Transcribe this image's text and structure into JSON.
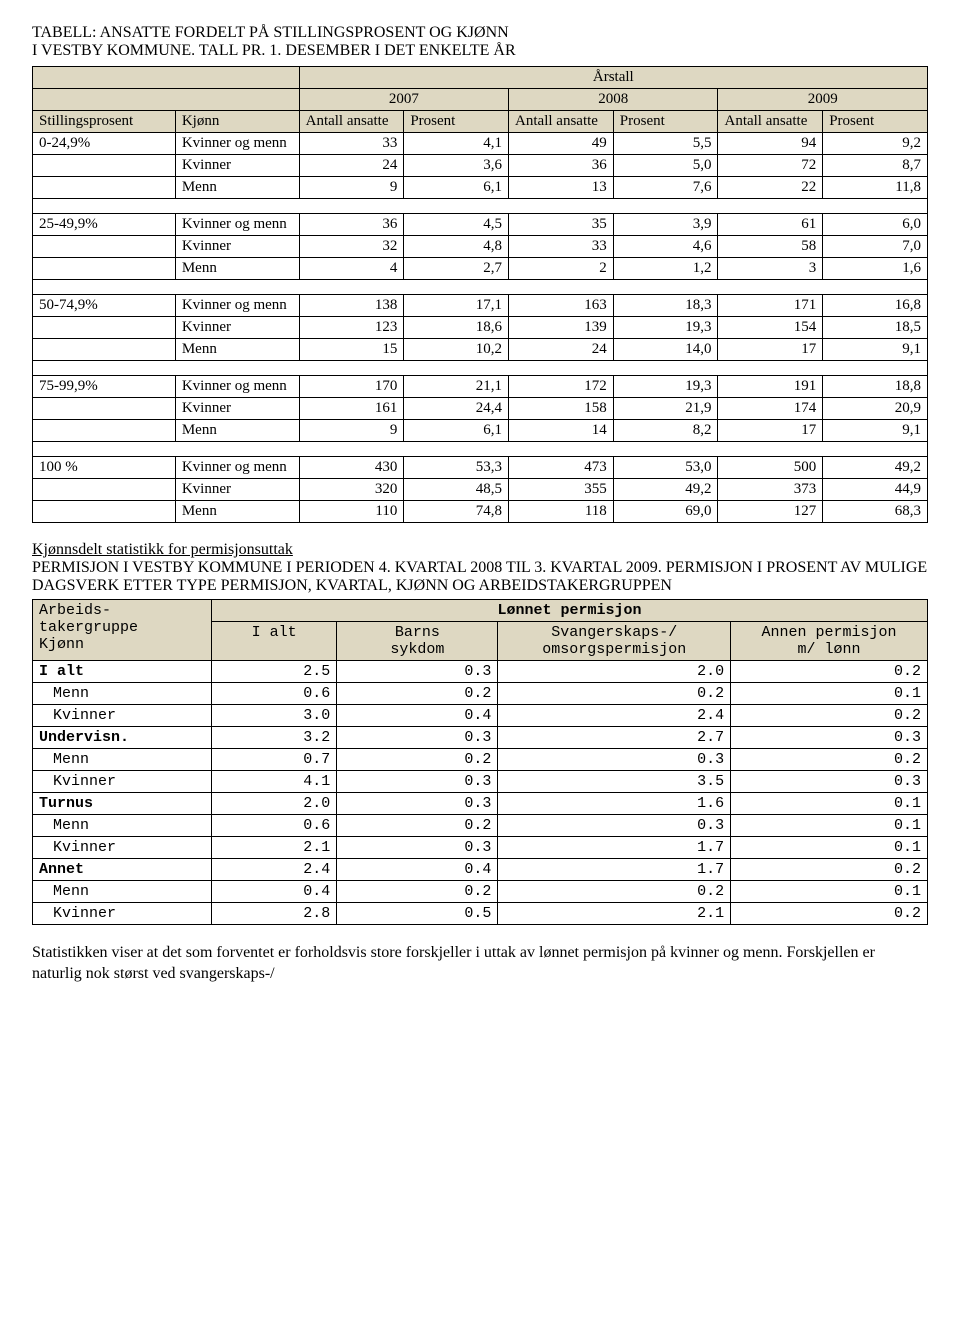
{
  "title": {
    "line1": "TABELL: ANSATTE FORDELT PÅ STILLINGSPROSENT OG KJØNN",
    "line2": "I VESTBY KOMMUNE. TALL PR. 1. DESEMBER I DET ENKELTE ÅR",
    "arstall_label": "Årstall"
  },
  "table1": {
    "years": [
      "2007",
      "2008",
      "2009"
    ],
    "col_headers": {
      "stillingsprosent": "Stillingsprosent",
      "kjonn": "Kjønn",
      "antall": "Antall ansatte",
      "prosent": "Prosent"
    },
    "groups": [
      {
        "range": "0-24,9%",
        "rows": [
          {
            "label": "Kvinner og menn",
            "v": [
              "33",
              "4,1",
              "49",
              "5,5",
              "94",
              "9,2"
            ]
          },
          {
            "label": "Kvinner",
            "v": [
              "24",
              "3,6",
              "36",
              "5,0",
              "72",
              "8,7"
            ]
          },
          {
            "label": "Menn",
            "v": [
              "9",
              "6,1",
              "13",
              "7,6",
              "22",
              "11,8"
            ]
          }
        ]
      },
      {
        "range": "25-49,9%",
        "rows": [
          {
            "label": "Kvinner og menn",
            "v": [
              "36",
              "4,5",
              "35",
              "3,9",
              "61",
              "6,0"
            ]
          },
          {
            "label": "Kvinner",
            "v": [
              "32",
              "4,8",
              "33",
              "4,6",
              "58",
              "7,0"
            ]
          },
          {
            "label": "Menn",
            "v": [
              "4",
              "2,7",
              "2",
              "1,2",
              "3",
              "1,6"
            ]
          }
        ]
      },
      {
        "range": "50-74,9%",
        "rows": [
          {
            "label": "Kvinner og menn",
            "v": [
              "138",
              "17,1",
              "163",
              "18,3",
              "171",
              "16,8"
            ]
          },
          {
            "label": "Kvinner",
            "v": [
              "123",
              "18,6",
              "139",
              "19,3",
              "154",
              "18,5"
            ]
          },
          {
            "label": "Menn",
            "v": [
              "15",
              "10,2",
              "24",
              "14,0",
              "17",
              "9,1"
            ]
          }
        ]
      },
      {
        "range": "75-99,9%",
        "rows": [
          {
            "label": "Kvinner og menn",
            "v": [
              "170",
              "21,1",
              "172",
              "19,3",
              "191",
              "18,8"
            ]
          },
          {
            "label": "Kvinner",
            "v": [
              "161",
              "24,4",
              "158",
              "21,9",
              "174",
              "20,9"
            ]
          },
          {
            "label": "Menn",
            "v": [
              "9",
              "6,1",
              "14",
              "8,2",
              "17",
              "9,1"
            ]
          }
        ]
      },
      {
        "range": "100 %",
        "rows": [
          {
            "label": "Kvinner og menn",
            "v": [
              "430",
              "53,3",
              "473",
              "53,0",
              "500",
              "49,2"
            ]
          },
          {
            "label": "Kvinner",
            "v": [
              "320",
              "48,5",
              "355",
              "49,2",
              "373",
              "44,9"
            ]
          },
          {
            "label": "Menn",
            "v": [
              "110",
              "74,8",
              "118",
              "69,0",
              "127",
              "68,3"
            ]
          }
        ]
      }
    ]
  },
  "section2": {
    "heading_underline": "Kjønnsdelt statistikk for permisjonsuttak",
    "heading_rest": "PERMISJON I VESTBY KOMMUNE I PERIODEN 4. KVARTAL 2008 TIL 3. KVARTAL 2009. PERMISJON I PROSENT AV MULIGE DAGSVERK ETTER TYPE PERMISJON, KVARTAL, KJØNN OG ARBEIDSTAKERGRUPPEN"
  },
  "table2": {
    "top_header": "Lønnet permisjon",
    "left_header_line1": "Arbeids-",
    "left_header_line2": "takergruppe",
    "left_header_line3": "Kjønn",
    "cols": {
      "ialt": "I alt",
      "barns_l1": "Barns",
      "barns_l2": "sykdom",
      "svanger_l1": "Svangerskaps-/",
      "svanger_l2": "omsorgspermisjon",
      "annen_l1": "Annen permisjon",
      "annen_l2": "m/ lønn"
    },
    "rows": [
      {
        "label": "I alt",
        "bold": true,
        "indent": 0,
        "v": [
          "2.5",
          "0.3",
          "2.0",
          "0.2"
        ]
      },
      {
        "label": "Menn",
        "bold": false,
        "indent": 1,
        "v": [
          "0.6",
          "0.2",
          "0.2",
          "0.1"
        ]
      },
      {
        "label": "Kvinner",
        "bold": false,
        "indent": 1,
        "v": [
          "3.0",
          "0.4",
          "2.4",
          "0.2"
        ]
      },
      {
        "label": "Undervisn.",
        "bold": true,
        "indent": 0,
        "v": [
          "3.2",
          "0.3",
          "2.7",
          "0.3"
        ]
      },
      {
        "label": "Menn",
        "bold": false,
        "indent": 1,
        "v": [
          "0.7",
          "0.2",
          "0.3",
          "0.2"
        ]
      },
      {
        "label": "Kvinner",
        "bold": false,
        "indent": 1,
        "v": [
          "4.1",
          "0.3",
          "3.5",
          "0.3"
        ]
      },
      {
        "label": "Turnus",
        "bold": true,
        "indent": 0,
        "v": [
          "2.0",
          "0.3",
          "1.6",
          "0.1"
        ]
      },
      {
        "label": "Menn",
        "bold": false,
        "indent": 1,
        "v": [
          "0.6",
          "0.2",
          "0.3",
          "0.1"
        ]
      },
      {
        "label": "Kvinner",
        "bold": false,
        "indent": 1,
        "v": [
          "2.1",
          "0.3",
          "1.7",
          "0.1"
        ]
      },
      {
        "label": "Annet",
        "bold": true,
        "indent": 0,
        "v": [
          "2.4",
          "0.4",
          "1.7",
          "0.2"
        ]
      },
      {
        "label": "Menn",
        "bold": false,
        "indent": 1,
        "v": [
          "0.4",
          "0.2",
          "0.2",
          "0.1"
        ]
      },
      {
        "label": "Kvinner",
        "bold": false,
        "indent": 1,
        "v": [
          "2.8",
          "0.5",
          "2.1",
          "0.2"
        ]
      }
    ]
  },
  "body_text": "Statistikken viser at det som forventet er forholdsvis store forskjeller i uttak av lønnet permisjon på kvinner og menn. Forskjellen er naturlig nok størst ved svangerskaps-/"
}
